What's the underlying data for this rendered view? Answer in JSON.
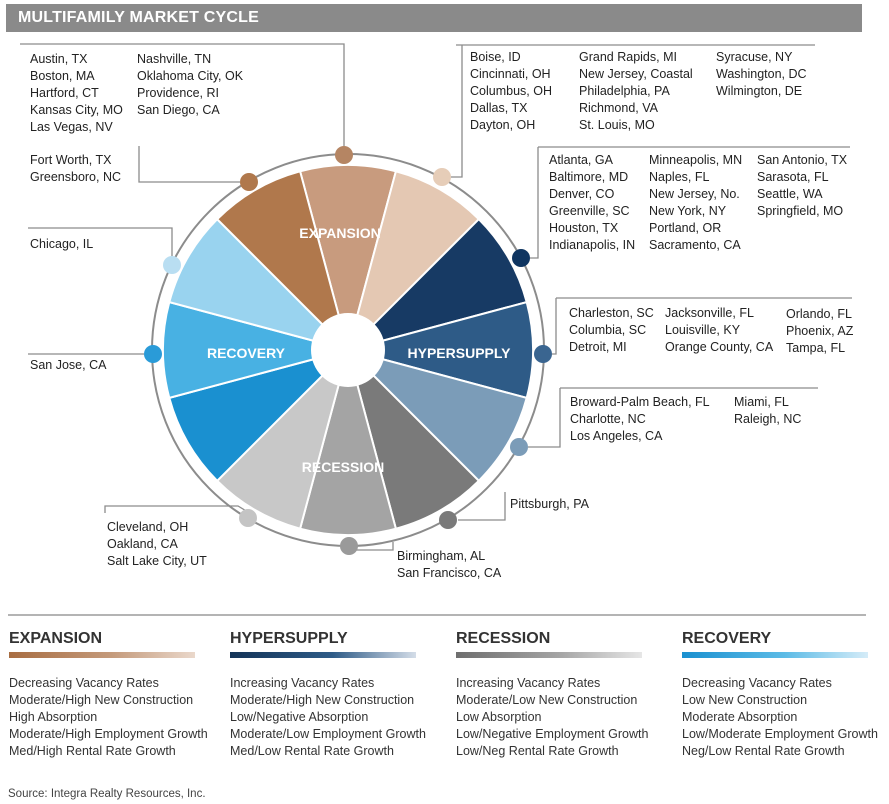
{
  "header": {
    "title": "MULTIFAMILY MARKET CYCLE"
  },
  "phases": {
    "expansion": "EXPANSION",
    "hypersupply": "HYPERSUPPLY",
    "recession": "RECESSION",
    "recovery": "RECOVERY"
  },
  "groups": {
    "top_left": [
      "Austin, TX",
      "Boston, MA",
      "Hartford, CT",
      "Kansas City, MO",
      "Las Vegas, NV"
    ],
    "top_left_2": [
      "Nashville, TN",
      "Oklahoma City, OK",
      "Providence, RI",
      "San Diego, CA"
    ],
    "fort_worth": [
      "Fort Worth, TX",
      "Greensboro, NC"
    ],
    "chicago": [
      "Chicago, IL"
    ],
    "san_jose": [
      "San Jose, CA"
    ],
    "cleveland": [
      "Cleveland, OH",
      "Oakland, CA",
      "Salt Lake City, UT"
    ],
    "birmingham": [
      "Birmingham, AL",
      "San Francisco, CA"
    ],
    "pittsburgh": [
      "Pittsburgh, PA"
    ],
    "boise_1": [
      "Boise, ID",
      "Cincinnati, OH",
      "Columbus, OH",
      "Dallas, TX",
      "Dayton, OH"
    ],
    "boise_2": [
      "Grand Rapids, MI",
      "New Jersey, Coastal",
      "Philadelphia, PA",
      "Richmond, VA",
      "St. Louis, MO"
    ],
    "boise_3": [
      "Syracuse, NY",
      "Washington, DC",
      "Wilmington, DE"
    ],
    "atlanta_1": [
      "Atlanta, GA",
      "Baltimore, MD",
      "Denver, CO",
      "Greenville, SC",
      "Houston, TX",
      "Indianapolis, IN"
    ],
    "atlanta_2": [
      "Minneapolis, MN",
      "Naples, FL",
      "New Jersey, No.",
      "New York, NY",
      "Portland, OR",
      "Sacramento, CA"
    ],
    "atlanta_3": [
      "San Antonio, TX",
      "Sarasota, FL",
      "Seattle, WA",
      "Springfield, MO"
    ],
    "charleston_1": [
      "Charleston, SC",
      "Columbia, SC",
      "Detroit, MI"
    ],
    "charleston_2": [
      "Jacksonville, FL",
      "Louisville, KY",
      "Orange County, CA"
    ],
    "charleston_3": [
      "Orlando, FL",
      "Phoenix, AZ",
      "Tampa, FL"
    ],
    "broward_1": [
      "Broward-Palm Beach, FL",
      "Charlotte, NC",
      "Los Angeles, CA"
    ],
    "broward_2": [
      "Miami, FL",
      "Raleigh, NC"
    ]
  },
  "legend": [
    {
      "title": "EXPANSION",
      "items": [
        "Decreasing Vacancy Rates",
        "Moderate/High New Construction",
        "High Absorption",
        "Moderate/High Employment Growth",
        "Med/High Rental Rate Growth"
      ]
    },
    {
      "title": "HYPERSUPPLY",
      "items": [
        "Increasing Vacancy Rates",
        "Moderate/High New Construction",
        "Low/Negative Absorption",
        "Moderate/Low Employment Growth",
        "Med/Low Rental Rate Growth"
      ]
    },
    {
      "title": "RECESSION",
      "items": [
        "Increasing Vacancy Rates",
        "Moderate/Low New Construction",
        "Low Absorption",
        "Low/Negative Employment Growth",
        "Low/Neg Rental Rate Growth"
      ]
    },
    {
      "title": "RECOVERY",
      "items": [
        "Decreasing Vacancy Rates",
        "Low New Construction",
        "Moderate Absorption",
        "Low/Moderate Employment Growth",
        "Neg/Low Rental Rate Growth"
      ]
    }
  ],
  "colors": {
    "expansion": [
      "#b0784c",
      "#c89b7e",
      "#e4c8b3"
    ],
    "hypersupply": [
      "#173a64",
      "#2e5b87",
      "#7b9cb8"
    ],
    "recession": [
      "#7a7a7a",
      "#a4a4a4",
      "#c8c8c8"
    ],
    "recovery": [
      "#1a90d0",
      "#48b1e3",
      "#99d3ef"
    ]
  },
  "source": "Source: Integra Realty Resources, Inc."
}
